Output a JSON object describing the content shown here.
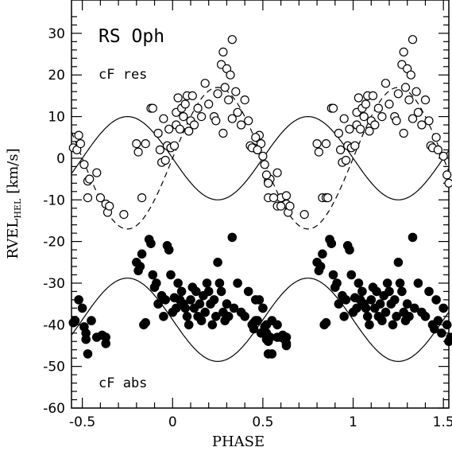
{
  "chart_data": {
    "type": "scatter",
    "title": "",
    "xlabel": "PHASE",
    "ylabel_main": "RVEL",
    "ylabel_sub": "HEL",
    "ylabel_unit": "[km/s]",
    "xlim": [
      -0.56,
      1.53
    ],
    "ylim": [
      -60,
      38
    ],
    "x_ticks": [
      -0.5,
      0,
      0.5,
      1,
      1.5
    ],
    "x_tick_labels": [
      "-0.5",
      "0",
      "0.5",
      "1",
      "1.5"
    ],
    "y_ticks": [
      -60,
      -50,
      -40,
      -30,
      -20,
      -10,
      0,
      10,
      20,
      30
    ],
    "y_tick_labels": [
      "-60",
      "-50",
      "-40",
      "-30",
      "-20",
      "-10",
      "0",
      "10",
      "20",
      "30"
    ],
    "annotations": {
      "star": "RS Oph",
      "res": "cF res",
      "abs": "cF abs"
    },
    "curves": {
      "solid_upper": {
        "offset": 0,
        "amplitude": 10
      },
      "dashed_upper": {
        "offset": 0,
        "amplitude": 17
      },
      "solid_lower": {
        "offset": -38.8,
        "amplitude": 10
      }
    },
    "series": [
      {
        "marker": "open-circle",
        "points": [
          [
            -0.55,
            2.5
          ],
          [
            -0.53,
            2
          ],
          [
            -0.52,
            5.5
          ],
          [
            -0.51,
            3.5
          ],
          [
            -0.49,
            -1.5
          ],
          [
            -0.47,
            -5.5
          ],
          [
            -0.47,
            -9.5
          ],
          [
            -0.46,
            -5
          ],
          [
            -0.42,
            -3.5
          ],
          [
            -0.4,
            -9.5
          ],
          [
            -0.37,
            -11
          ],
          [
            -0.36,
            -13
          ],
          [
            -0.35,
            -11.5
          ],
          [
            -0.27,
            -13.5
          ],
          [
            -0.17,
            -9.5
          ],
          [
            -0.2,
            3.5
          ],
          [
            -0.19,
            1.5
          ],
          [
            -0.15,
            3.5
          ],
          [
            -0.12,
            12
          ],
          [
            -0.11,
            12
          ],
          [
            -0.08,
            6
          ],
          [
            -0.07,
            2
          ],
          [
            -0.06,
            -1
          ],
          [
            -0.04,
            -0.5
          ],
          [
            -0.05,
            9.5
          ],
          [
            -0.03,
            3
          ],
          [
            -0.02,
            7
          ],
          [
            -0.01,
            2.5
          ],
          [
            0.01,
            3
          ],
          [
            0.02,
            8
          ],
          [
            0.02,
            11
          ],
          [
            0.03,
            14.5
          ],
          [
            0.04,
            7
          ],
          [
            0.05,
            12
          ],
          [
            0.06,
            10
          ],
          [
            0.07,
            13
          ],
          [
            0.08,
            15
          ],
          [
            0.09,
            6.5
          ],
          [
            0.1,
            9
          ],
          [
            0.11,
            15
          ],
          [
            0.12,
            8
          ],
          [
            0.14,
            12
          ],
          [
            0.16,
            10
          ],
          [
            0.18,
            18
          ],
          [
            0.2,
            13
          ],
          [
            0.23,
            10
          ],
          [
            0.24,
            9
          ],
          [
            0.25,
            15.5
          ],
          [
            0.27,
            22.5
          ],
          [
            0.28,
            25.5
          ],
          [
            0.29,
            17
          ],
          [
            0.3,
            21.5
          ],
          [
            0.32,
            20
          ],
          [
            0.33,
            28.5
          ],
          [
            0.28,
            6
          ],
          [
            0.31,
            14
          ],
          [
            0.33,
            9.5
          ],
          [
            0.35,
            16
          ],
          [
            0.36,
            11
          ],
          [
            0.38,
            8
          ],
          [
            0.4,
            14
          ],
          [
            0.42,
            9
          ],
          [
            0.43,
            3
          ],
          [
            0.44,
            2.5
          ],
          [
            0.46,
            5
          ],
          [
            0.47,
            2
          ],
          [
            0.5,
            0.5
          ],
          [
            0.52,
            -4
          ],
          [
            0.53,
            -6
          ],
          [
            0.56,
            -9.5
          ],
          [
            0.58,
            -11.5
          ],
          [
            0.6,
            -11.5
          ],
          [
            0.63,
            -9
          ],
          [
            0.85,
            -9.5
          ],
          [
            0.86,
            -9.5
          ]
        ]
      },
      {
        "marker": "filled-circle",
        "points": [
          [
            -0.55,
            -39.5
          ],
          [
            -0.54,
            -39
          ],
          [
            -0.52,
            -34
          ],
          [
            -0.5,
            -36
          ],
          [
            -0.49,
            -40.5
          ],
          [
            -0.48,
            -42
          ],
          [
            -0.48,
            -43.5
          ],
          [
            -0.47,
            -47
          ],
          [
            -0.45,
            -39
          ],
          [
            -0.42,
            -43
          ],
          [
            -0.39,
            -42.5
          ],
          [
            -0.37,
            -44.5
          ],
          [
            -0.37,
            -43
          ],
          [
            -0.2,
            -25
          ],
          [
            -0.19,
            -27
          ],
          [
            -0.18,
            -26
          ],
          [
            -0.17,
            -23
          ],
          [
            -0.16,
            -40
          ],
          [
            -0.15,
            -39.5
          ],
          [
            -0.13,
            -19.5
          ],
          [
            -0.12,
            -20.5
          ],
          [
            -0.11,
            -28
          ],
          [
            -0.1,
            -31
          ],
          [
            -0.09,
            -30
          ],
          [
            -0.08,
            -35
          ],
          [
            -0.06,
            -33
          ],
          [
            -0.05,
            -38
          ],
          [
            -0.04,
            -34
          ],
          [
            -0.03,
            -21
          ],
          [
            -0.02,
            -22
          ],
          [
            -0.01,
            -28
          ],
          [
            0,
            -37
          ],
          [
            0.01,
            -33.5
          ],
          [
            0.02,
            -36
          ],
          [
            0.03,
            -30
          ],
          [
            0.04,
            -34
          ],
          [
            0.05,
            -32
          ],
          [
            0.06,
            -35
          ],
          [
            0.07,
            -36
          ],
          [
            0.08,
            -38
          ],
          [
            0.09,
            -40
          ],
          [
            0.1,
            -34
          ],
          [
            0.11,
            -31
          ],
          [
            0.12,
            -36
          ],
          [
            0.13,
            -32
          ],
          [
            0.14,
            -38
          ],
          [
            0.15,
            -35
          ],
          [
            0.16,
            -39
          ],
          [
            0.17,
            -33
          ],
          [
            0.18,
            -37
          ],
          [
            0.19,
            -30
          ],
          [
            0.2,
            -32
          ],
          [
            0.21,
            -35
          ],
          [
            0.22,
            -40
          ],
          [
            0.23,
            -34
          ],
          [
            0.24,
            -38
          ],
          [
            0.25,
            -25
          ],
          [
            0.26,
            -30
          ],
          [
            0.27,
            -32
          ],
          [
            0.28,
            -37
          ],
          [
            0.29,
            -39
          ],
          [
            0.3,
            -35
          ],
          [
            0.31,
            -38
          ],
          [
            0.33,
            -19
          ],
          [
            0.34,
            -36
          ],
          [
            0.36,
            -30
          ],
          [
            0.38,
            -37
          ],
          [
            0.4,
            -38
          ],
          [
            0.42,
            -32
          ],
          [
            0.44,
            -40
          ],
          [
            0.45,
            -41
          ],
          [
            0.46,
            -34
          ],
          [
            0.47,
            -39
          ],
          [
            0.49,
            -42
          ],
          [
            0.5,
            -36
          ],
          [
            0.52,
            -40
          ],
          [
            0.53,
            -44
          ],
          [
            0.54,
            -43
          ],
          [
            0.55,
            -47
          ],
          [
            0.58,
            -40
          ],
          [
            0.6,
            -43
          ],
          [
            0.62,
            -43.5
          ],
          [
            0.63,
            -45
          ]
        ]
      }
    ]
  }
}
